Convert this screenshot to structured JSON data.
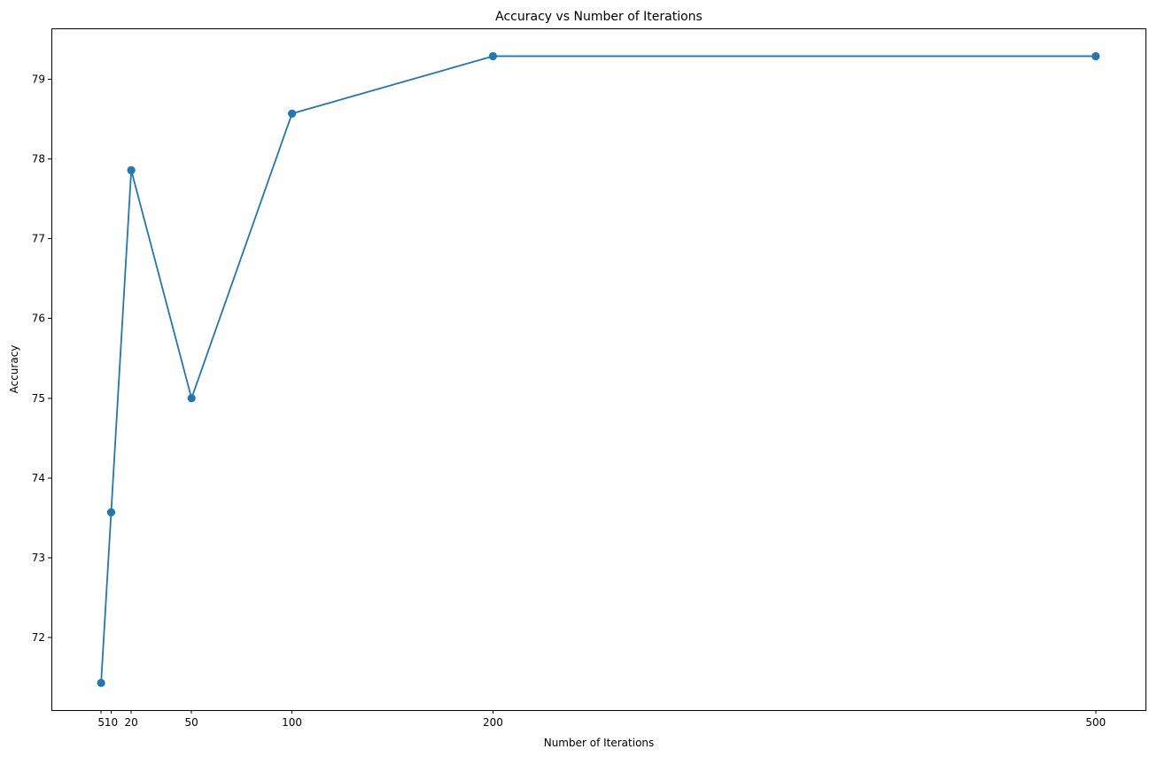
{
  "chart_data": {
    "type": "line",
    "title": "Accuracy vs Number of Iterations",
    "xlabel": "Number of Iterations",
    "ylabel": "Accuracy",
    "x": [
      5,
      10,
      20,
      50,
      100,
      200,
      500
    ],
    "series": [
      {
        "values": [
          71.43,
          73.57,
          77.86,
          75.0,
          78.57,
          79.29,
          79.29
        ],
        "color": "#1f77b4",
        "marker": "circle"
      }
    ],
    "xticks": [
      5,
      10,
      20,
      50,
      100,
      200,
      500
    ],
    "xtick_labels": [
      "5",
      "10",
      "20",
      "50",
      "100",
      "200",
      "500"
    ],
    "yticks": [
      72,
      73,
      74,
      75,
      76,
      77,
      78,
      79
    ],
    "ytick_labels": [
      "72",
      "73",
      "74",
      "75",
      "76",
      "77",
      "78",
      "79"
    ],
    "xlim": [
      -19.75,
      524.75
    ],
    "ylim": [
      71.0893,
      79.6393
    ],
    "grid": false,
    "legend": "none"
  }
}
